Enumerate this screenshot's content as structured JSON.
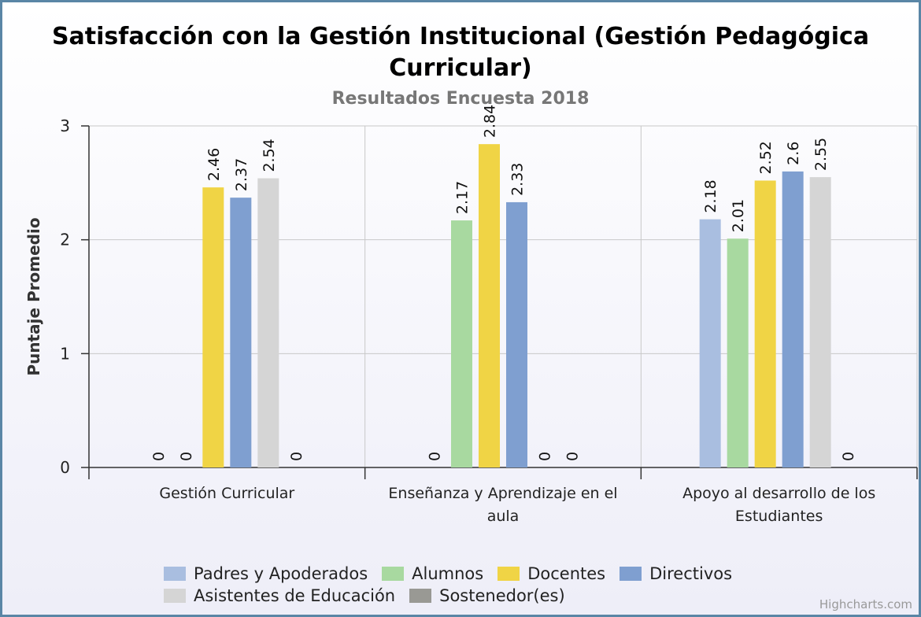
{
  "chart_data": {
    "type": "bar",
    "title": "Satisfacción con la Gestión Institucional (Gestión Pedagógica Curricular)",
    "subtitle": "Resultados Encuesta 2018",
    "y_label": "Puntaje Promedio",
    "categories": [
      "Gestión Curricular",
      "Enseñanza y Aprendizaje en el aula",
      "Apoyo al desarrollo de los Estudiantes"
    ],
    "series": [
      {
        "name": "Padres y Apoderados",
        "color": "#a9bee0",
        "values": [
          0,
          0,
          2.18
        ]
      },
      {
        "name": "Alumnos",
        "color": "#a8d9a0",
        "values": [
          0,
          2.17,
          2.01
        ]
      },
      {
        "name": "Docentes",
        "color": "#f0d445",
        "values": [
          2.46,
          2.84,
          2.52
        ]
      },
      {
        "name": "Directivos",
        "color": "#7f9fd0",
        "values": [
          2.37,
          2.33,
          2.6
        ]
      },
      {
        "name": "Asistentes de Educación",
        "color": "#d5d5d5",
        "values": [
          2.54,
          0,
          2.55
        ]
      },
      {
        "name": "Sostenedor(es)",
        "color": "#999994",
        "values": [
          0,
          0,
          0
        ]
      }
    ],
    "ylim": [
      0,
      3
    ],
    "yticks": [
      0,
      1,
      2,
      3
    ],
    "grid": true,
    "credits": "Highcharts.com"
  }
}
